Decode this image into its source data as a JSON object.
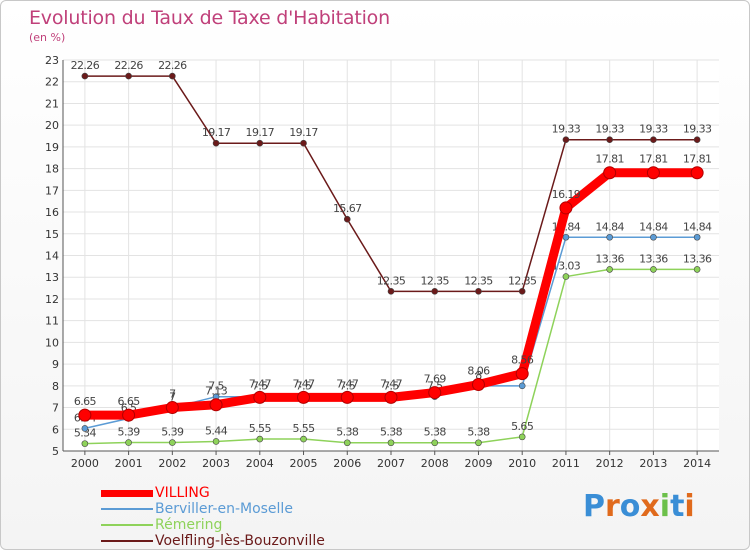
{
  "title": "Evolution du Taux de Taxe d'Habitation",
  "unit_label": "(en %)",
  "logo": {
    "text": "Proxiti",
    "colors": [
      "#3a8ed6",
      "#e06a1c",
      "#3a8ed6",
      "#e06a1c",
      "#6cc04a",
      "#3a8ed6",
      "#e06a1c"
    ]
  },
  "chart_data": {
    "type": "line",
    "x": [
      "2000",
      "2001",
      "2002",
      "2003",
      "2004",
      "2005",
      "2006",
      "2007",
      "2008",
      "2009",
      "2010",
      "2011",
      "2012",
      "2013",
      "2014"
    ],
    "ylim": [
      5,
      23
    ],
    "yticks": [
      "5",
      "6",
      "7",
      "8",
      "9",
      "10",
      "11",
      "12",
      "13",
      "14",
      "15",
      "16",
      "17",
      "18",
      "19",
      "20",
      "21",
      "22",
      "23"
    ],
    "grid": true,
    "legend_position": "bottom-left",
    "series": [
      {
        "name": "Voelfling-lès-Bouzonville",
        "color": "#6b1a1a",
        "values": [
          22.26,
          22.26,
          22.26,
          19.17,
          19.17,
          19.17,
          15.67,
          12.35,
          12.35,
          12.35,
          12.35,
          19.33,
          19.33,
          19.33,
          19.33
        ],
        "labels": [
          "22.26",
          "22.26",
          "22.26",
          "19.17",
          "19.17",
          "19.17",
          "15.67",
          "12.35",
          "12.35",
          "12.35",
          "12.35",
          "19.33",
          "19.33",
          "19.33",
          "19.33"
        ]
      },
      {
        "name": "Rémering",
        "color": "#8ed25a",
        "values": [
          5.34,
          5.39,
          5.39,
          5.44,
          5.55,
          5.55,
          5.38,
          5.38,
          5.38,
          5.38,
          5.65,
          13.03,
          13.36,
          13.36,
          13.36
        ],
        "labels": [
          "5.34",
          "5.39",
          "5.39",
          "5.44",
          "5.55",
          "5.55",
          "5.38",
          "5.38",
          "5.38",
          "5.38",
          "5.65",
          "13.03",
          "13.36",
          "13.36",
          "13.36"
        ]
      },
      {
        "name": "Berviller-en-Moselle",
        "color": "#5b9bd5",
        "values": [
          6.04,
          6.5,
          7.0,
          7.5,
          7.5,
          7.5,
          7.5,
          7.5,
          7.5,
          8.0,
          8.0,
          14.84,
          14.84,
          14.84,
          14.84
        ],
        "labels": [
          "6.04",
          "6.5",
          "7",
          "7.5",
          "7.5",
          "7.5",
          "7.5",
          "7.5",
          "7.5",
          "8",
          "8",
          "14.84",
          "14.84",
          "14.84",
          "14.84"
        ]
      },
      {
        "name": "VILLING",
        "color": "#ff0000",
        "values": [
          6.65,
          6.65,
          7.0,
          7.13,
          7.47,
          7.47,
          7.47,
          7.47,
          7.69,
          8.06,
          8.56,
          16.19,
          17.81,
          17.81,
          17.81
        ],
        "labels": [
          "6.65",
          "6.65",
          "7",
          "7.13",
          "7.47",
          "7.47",
          "7.47",
          "7.47",
          "7.69",
          "8.06",
          "8.56",
          "16.19",
          "17.81",
          "17.81",
          "17.81"
        ]
      }
    ],
    "legend_order": [
      "VILLING",
      "Berviller-en-Moselle",
      "Rémering",
      "Voelfling-lès-Bouzonville"
    ]
  }
}
